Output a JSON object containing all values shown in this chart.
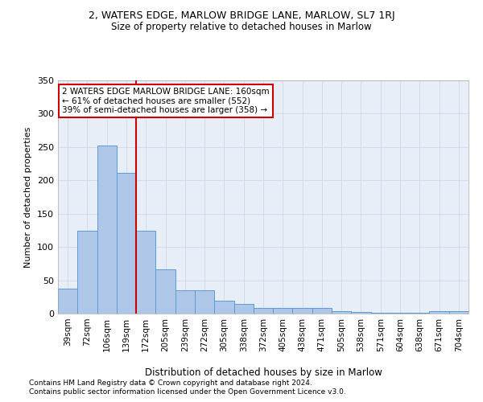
{
  "title": "2, WATERS EDGE, MARLOW BRIDGE LANE, MARLOW, SL7 1RJ",
  "subtitle": "Size of property relative to detached houses in Marlow",
  "xlabel": "Distribution of detached houses by size in Marlow",
  "ylabel": "Number of detached properties",
  "categories": [
    "39sqm",
    "72sqm",
    "106sqm",
    "139sqm",
    "172sqm",
    "205sqm",
    "239sqm",
    "272sqm",
    "305sqm",
    "338sqm",
    "372sqm",
    "405sqm",
    "438sqm",
    "471sqm",
    "505sqm",
    "538sqm",
    "571sqm",
    "604sqm",
    "638sqm",
    "671sqm",
    "704sqm"
  ],
  "values": [
    37,
    124,
    252,
    211,
    124,
    66,
    35,
    35,
    19,
    14,
    9,
    8,
    8,
    8,
    4,
    2,
    1,
    1,
    1,
    4,
    4
  ],
  "bar_color": "#aec6e8",
  "bar_edge_color": "#5b9bd5",
  "grid_color": "#c8d4e8",
  "background_color": "#e8eef8",
  "property_line_x": 3,
  "annotation_text": "2 WATERS EDGE MARLOW BRIDGE LANE: 160sqm\n← 61% of detached houses are smaller (552)\n39% of semi-detached houses are larger (358) →",
  "annotation_box_color": "#ffffff",
  "annotation_box_edge": "#cc0000",
  "vline_color": "#cc0000",
  "ylim": [
    0,
    350
  ],
  "yticks": [
    0,
    50,
    100,
    150,
    200,
    250,
    300,
    350
  ],
  "footer1": "Contains HM Land Registry data © Crown copyright and database right 2024.",
  "footer2": "Contains public sector information licensed under the Open Government Licence v3.0."
}
